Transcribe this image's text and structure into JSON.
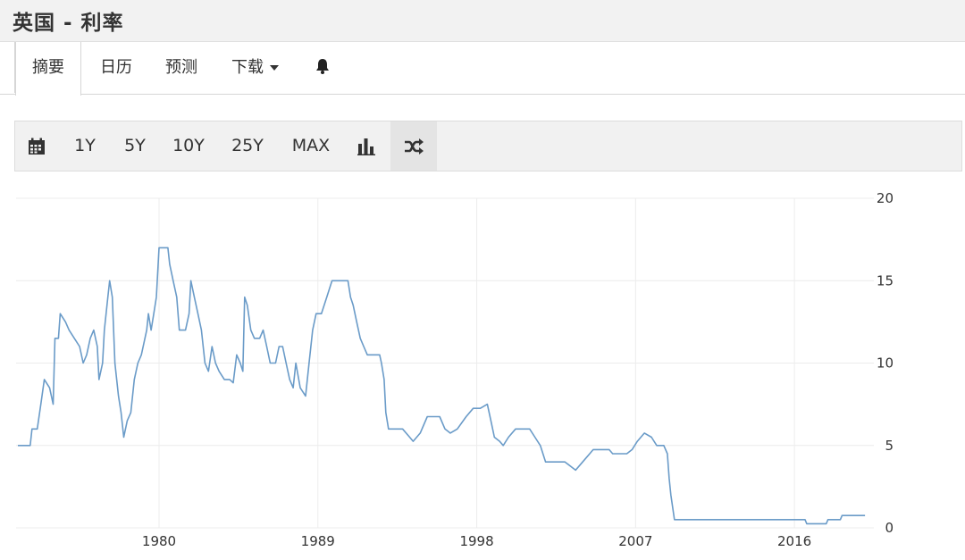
{
  "page": {
    "title": "英国 - 利率"
  },
  "tabs": [
    {
      "label": "摘要",
      "active": true
    },
    {
      "label": "日历"
    },
    {
      "label": "预测"
    },
    {
      "label": "下载",
      "has_dropdown": true
    },
    {
      "icon": "bell-icon"
    }
  ],
  "toolbar": {
    "items": [
      {
        "icon": "calendar-icon"
      },
      {
        "label": "1Y"
      },
      {
        "label": "5Y"
      },
      {
        "label": "10Y"
      },
      {
        "label": "25Y"
      },
      {
        "label": "MAX"
      },
      {
        "icon": "bar-chart-icon"
      },
      {
        "icon": "shuffle-icon",
        "active": true
      }
    ]
  },
  "chart_data": {
    "type": "line",
    "title": "",
    "xlabel": "",
    "ylabel": "",
    "x_ticks": [
      "1980",
      "1989",
      "1998",
      "2007",
      "2016"
    ],
    "y_ticks": [
      "20",
      "15",
      "10",
      "5",
      "0"
    ],
    "xlim": [
      1971.9,
      2020.5
    ],
    "ylim": [
      0,
      20
    ],
    "grid": true,
    "line_color": "#6a9bc8",
    "series": [
      {
        "points": [
          [
            1972.0,
            5.0
          ],
          [
            1972.7,
            5.0
          ],
          [
            1972.8,
            6.0
          ],
          [
            1973.1,
            6.0
          ],
          [
            1973.3,
            7.5
          ],
          [
            1973.5,
            9.0
          ],
          [
            1973.8,
            8.5
          ],
          [
            1974.0,
            7.5
          ],
          [
            1974.1,
            11.5
          ],
          [
            1974.3,
            11.5
          ],
          [
            1974.4,
            13.0
          ],
          [
            1974.7,
            12.5
          ],
          [
            1974.9,
            12.0
          ],
          [
            1975.2,
            11.5
          ],
          [
            1975.5,
            11.0
          ],
          [
            1975.7,
            10.0
          ],
          [
            1975.9,
            10.5
          ],
          [
            1976.1,
            11.5
          ],
          [
            1976.3,
            12.0
          ],
          [
            1976.5,
            11.0
          ],
          [
            1976.6,
            9.0
          ],
          [
            1976.8,
            10.0
          ],
          [
            1976.9,
            12.0
          ],
          [
            1977.1,
            14.0
          ],
          [
            1977.2,
            15.0
          ],
          [
            1977.35,
            14.0
          ],
          [
            1977.5,
            10.0
          ],
          [
            1977.7,
            8.0
          ],
          [
            1977.85,
            7.0
          ],
          [
            1978.0,
            5.5
          ],
          [
            1978.2,
            6.5
          ],
          [
            1978.4,
            7.0
          ],
          [
            1978.6,
            9.0
          ],
          [
            1978.8,
            10.0
          ],
          [
            1979.0,
            10.5
          ],
          [
            1979.3,
            12.0
          ],
          [
            1979.4,
            13.0
          ],
          [
            1979.55,
            12.0
          ],
          [
            1979.7,
            13.0
          ],
          [
            1979.85,
            14.0
          ],
          [
            1980.0,
            17.0
          ],
          [
            1980.5,
            17.0
          ],
          [
            1980.6,
            16.0
          ],
          [
            1980.8,
            15.0
          ],
          [
            1981.0,
            14.0
          ],
          [
            1981.15,
            12.0
          ],
          [
            1981.5,
            12.0
          ],
          [
            1981.7,
            13.0
          ],
          [
            1981.8,
            15.0
          ],
          [
            1982.0,
            14.0
          ],
          [
            1982.2,
            13.0
          ],
          [
            1982.4,
            12.0
          ],
          [
            1982.6,
            10.0
          ],
          [
            1982.8,
            9.5
          ],
          [
            1983.0,
            11.0
          ],
          [
            1983.2,
            10.0
          ],
          [
            1983.4,
            9.5
          ],
          [
            1983.7,
            9.0
          ],
          [
            1984.0,
            9.0
          ],
          [
            1984.2,
            8.8
          ],
          [
            1984.4,
            10.5
          ],
          [
            1984.6,
            10.0
          ],
          [
            1984.75,
            9.5
          ],
          [
            1984.85,
            14.0
          ],
          [
            1985.0,
            13.5
          ],
          [
            1985.2,
            12.0
          ],
          [
            1985.4,
            11.5
          ],
          [
            1985.7,
            11.5
          ],
          [
            1985.9,
            12.0
          ],
          [
            1986.1,
            11.0
          ],
          [
            1986.3,
            10.0
          ],
          [
            1986.6,
            10.0
          ],
          [
            1986.8,
            11.0
          ],
          [
            1987.0,
            11.0
          ],
          [
            1987.2,
            10.0
          ],
          [
            1987.4,
            9.0
          ],
          [
            1987.6,
            8.5
          ],
          [
            1987.75,
            10.0
          ],
          [
            1988.0,
            8.5
          ],
          [
            1988.3,
            8.0
          ],
          [
            1988.5,
            10.0
          ],
          [
            1988.7,
            12.0
          ],
          [
            1988.9,
            13.0
          ],
          [
            1989.2,
            13.0
          ],
          [
            1989.5,
            14.0
          ],
          [
            1989.8,
            15.0
          ],
          [
            1990.7,
            15.0
          ],
          [
            1990.85,
            14.0
          ],
          [
            1991.0,
            13.5
          ],
          [
            1991.2,
            12.5
          ],
          [
            1991.4,
            11.5
          ],
          [
            1991.6,
            11.0
          ],
          [
            1991.8,
            10.5
          ],
          [
            1992.5,
            10.5
          ],
          [
            1992.6,
            10.0
          ],
          [
            1992.75,
            9.0
          ],
          [
            1992.85,
            7.0
          ],
          [
            1993.0,
            6.0
          ],
          [
            1993.8,
            6.0
          ],
          [
            1994.2,
            5.5
          ],
          [
            1994.4,
            5.25
          ],
          [
            1994.8,
            5.75
          ],
          [
            1995.2,
            6.75
          ],
          [
            1995.9,
            6.75
          ],
          [
            1996.2,
            6.0
          ],
          [
            1996.5,
            5.75
          ],
          [
            1996.9,
            6.0
          ],
          [
            1997.4,
            6.75
          ],
          [
            1997.8,
            7.25
          ],
          [
            1998.2,
            7.25
          ],
          [
            1998.6,
            7.5
          ],
          [
            1998.8,
            6.5
          ],
          [
            1999.0,
            5.5
          ],
          [
            1999.3,
            5.25
          ],
          [
            1999.5,
            5.0
          ],
          [
            1999.8,
            5.5
          ],
          [
            2000.2,
            6.0
          ],
          [
            2001.0,
            6.0
          ],
          [
            2001.3,
            5.5
          ],
          [
            2001.6,
            5.0
          ],
          [
            2001.9,
            4.0
          ],
          [
            2003.0,
            4.0
          ],
          [
            2003.3,
            3.75
          ],
          [
            2003.6,
            3.5
          ],
          [
            2004.0,
            4.0
          ],
          [
            2004.4,
            4.5
          ],
          [
            2004.6,
            4.75
          ],
          [
            2005.5,
            4.75
          ],
          [
            2005.7,
            4.5
          ],
          [
            2006.5,
            4.5
          ],
          [
            2006.8,
            4.75
          ],
          [
            2007.1,
            5.25
          ],
          [
            2007.5,
            5.75
          ],
          [
            2007.9,
            5.5
          ],
          [
            2008.2,
            5.0
          ],
          [
            2008.6,
            5.0
          ],
          [
            2008.8,
            4.5
          ],
          [
            2008.9,
            3.0
          ],
          [
            2009.0,
            2.0
          ],
          [
            2009.2,
            0.5
          ],
          [
            2016.6,
            0.5
          ],
          [
            2016.7,
            0.25
          ],
          [
            2017.8,
            0.25
          ],
          [
            2017.9,
            0.5
          ],
          [
            2018.6,
            0.5
          ],
          [
            2018.7,
            0.75
          ],
          [
            2020.0,
            0.75
          ]
        ]
      }
    ]
  }
}
